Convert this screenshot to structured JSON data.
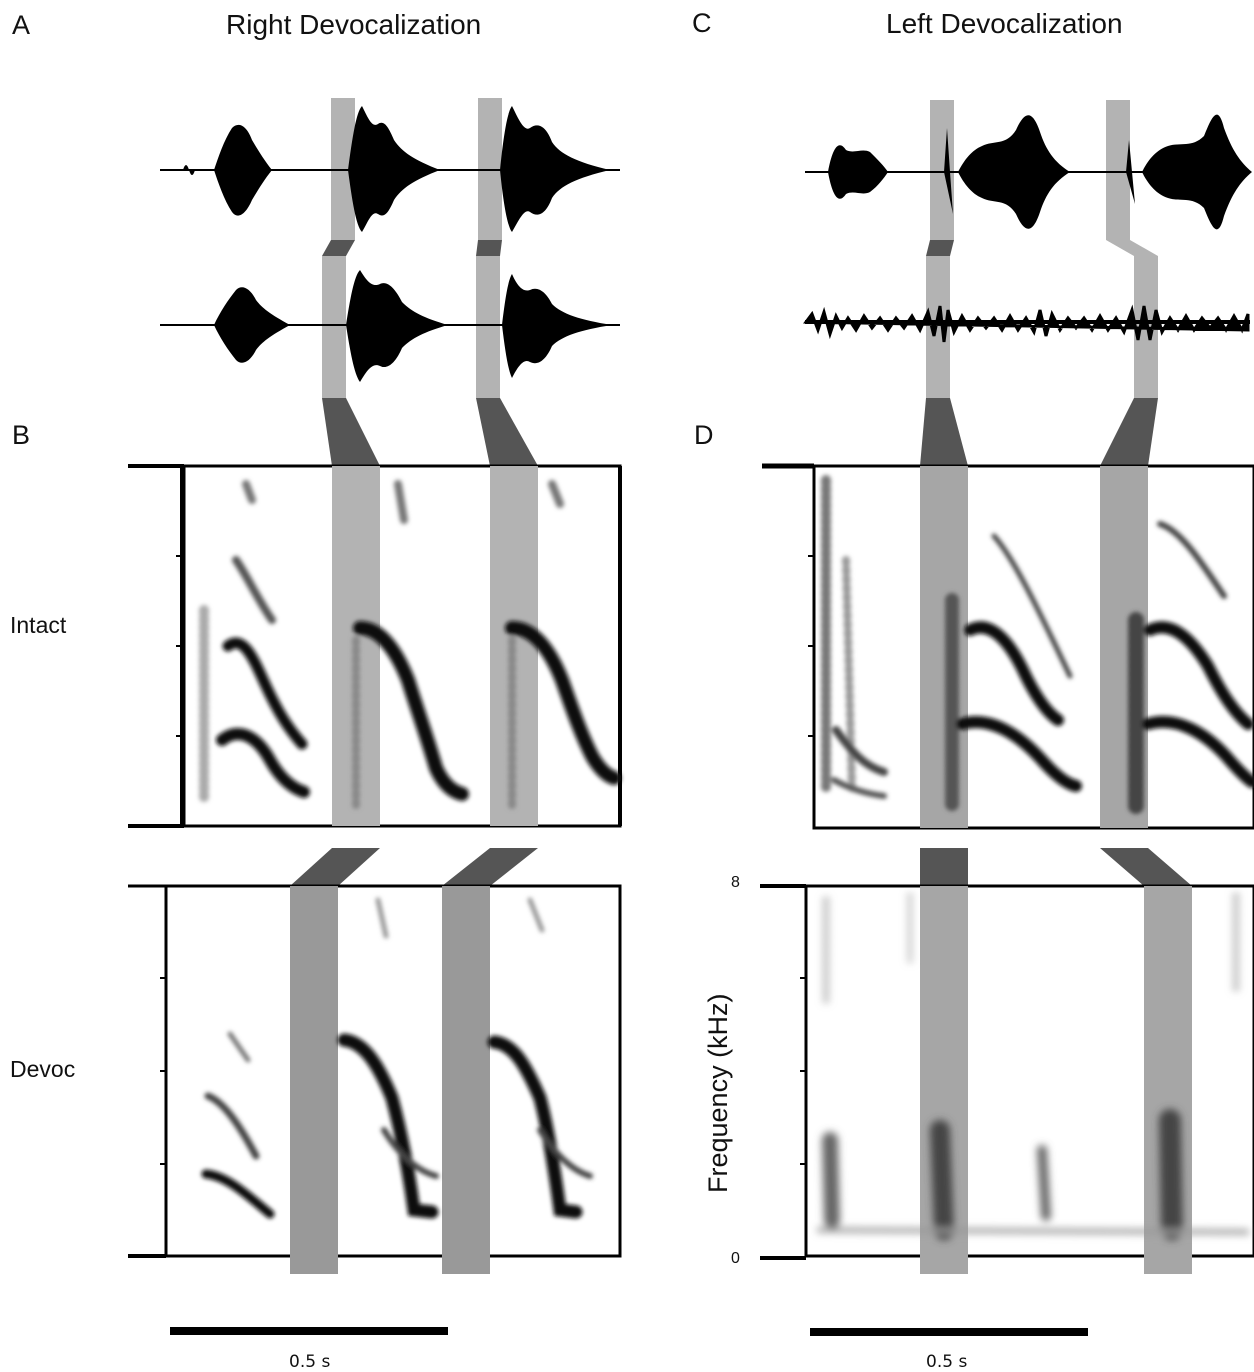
{
  "panels": {
    "a": {
      "letter": "A",
      "title": "Right Devocalization"
    },
    "b": {
      "letter": "B"
    },
    "c": {
      "letter": "C",
      "title": "Left Devocalization"
    },
    "d": {
      "letter": "D"
    }
  },
  "rows": {
    "intact": "Intact",
    "devoc": "Devoc"
  },
  "frequency_axis": {
    "label": "Frequency (kHz)",
    "top_tick": "8",
    "bottom_tick": "0"
  },
  "scale_bars": {
    "left": "0.5 s",
    "right": "0.5 s"
  },
  "colors": {
    "highlight_light": "#b3b3b3",
    "highlight_dark": "#555555",
    "ink": "#000000"
  }
}
